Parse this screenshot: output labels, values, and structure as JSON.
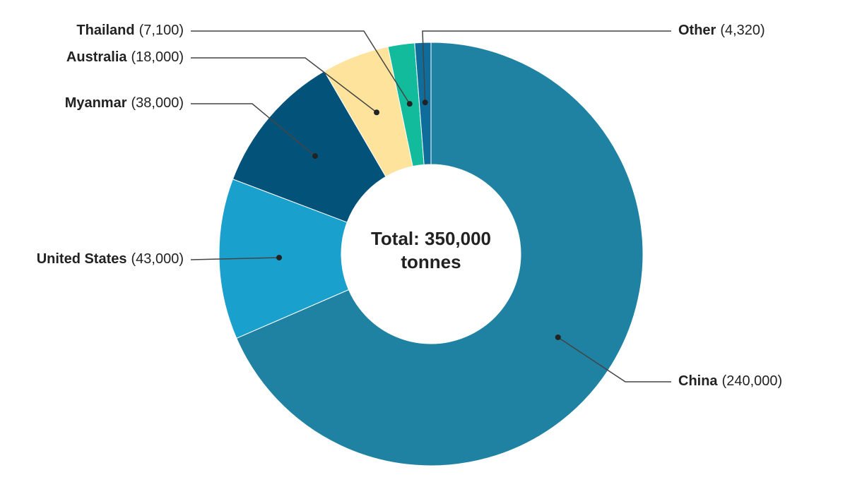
{
  "chart_data": {
    "type": "donut",
    "center_label": "Total: 350,000 tonnes",
    "categories": [
      "China",
      "United States",
      "Myanmar",
      "Australia",
      "Thailand",
      "Other"
    ],
    "values": [
      240000,
      43000,
      38000,
      18000,
      7100,
      4320
    ],
    "value_labels": [
      "(240,000)",
      "(43,000)",
      "(38,000)",
      "(18,000)",
      "(7,100)",
      "(4,320)"
    ],
    "colors": [
      "#1f82a3",
      "#1aa0cd",
      "#03527a",
      "#fde39b",
      "#12bb9c",
      "#0f6d9b"
    ]
  }
}
